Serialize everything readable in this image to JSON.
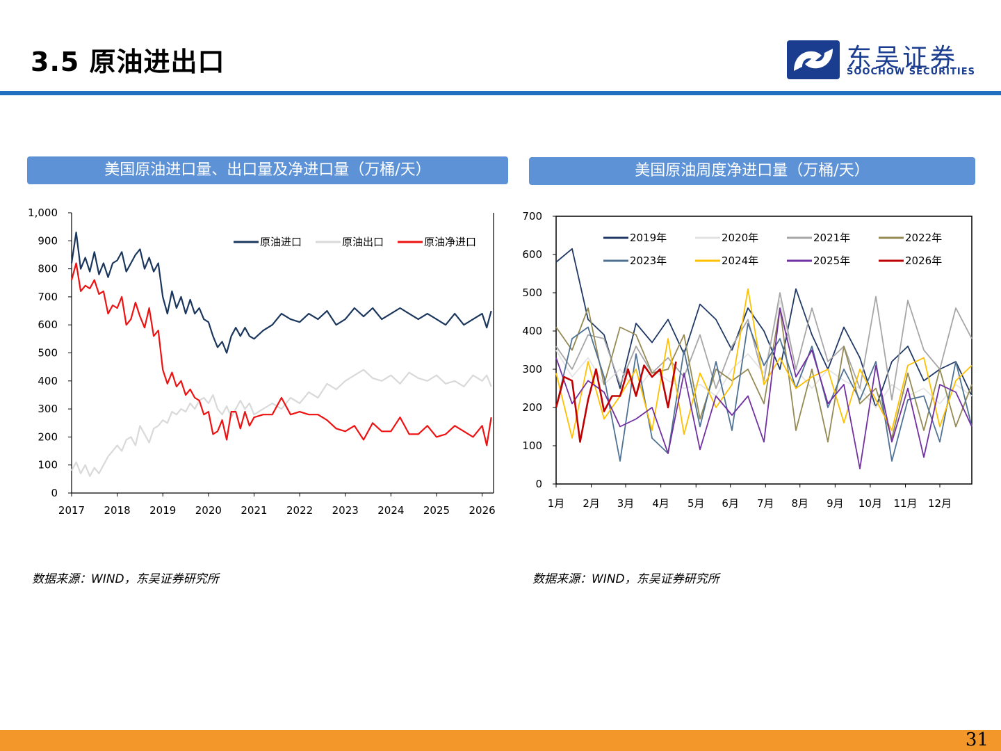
{
  "header": {
    "title": "3.5 原油进出口",
    "logo_name": "东吴证券",
    "logo_en": "SOOCHOW SECURITIES"
  },
  "colors": {
    "brand_blue": "#1f6fbf",
    "panel_header": "#5d93d6",
    "footer_orange": "#f4972b"
  },
  "left_panel": {
    "header": "美国原油进口量、出口量及净进口量（万桶/天）",
    "source": "数据来源：WIND，东吴证券研究所"
  },
  "right_panel": {
    "header": "美国原油周度净进口量（万桶/天）",
    "source": "数据来源：WIND，东吴证券研究所"
  },
  "footer": {
    "page_number": "31"
  },
  "chart_data": [
    {
      "type": "line",
      "x_unit": "year",
      "x_ticks": [
        "2017",
        "2018",
        "2019",
        "2020",
        "2021",
        "2022",
        "2023",
        "2024",
        "2025",
        "2026"
      ],
      "xlim": [
        2017,
        2026.25
      ],
      "y_ticks": [
        "0",
        "100",
        "200",
        "300",
        "400",
        "500",
        "600",
        "700",
        "800",
        "900",
        "1,000"
      ],
      "ylim": [
        0,
        1000
      ],
      "legend_position": "top-right",
      "grid": false,
      "series": [
        {
          "name": "原油进口",
          "color": "#1b365d",
          "x": [
            2017.0,
            2017.1,
            2017.2,
            2017.3,
            2017.4,
            2017.5,
            2017.6,
            2017.7,
            2017.8,
            2017.9,
            2018.0,
            2018.1,
            2018.2,
            2018.3,
            2018.4,
            2018.5,
            2018.6,
            2018.7,
            2018.8,
            2018.9,
            2019.0,
            2019.1,
            2019.2,
            2019.3,
            2019.4,
            2019.5,
            2019.6,
            2019.7,
            2019.8,
            2019.9,
            2020.0,
            2020.1,
            2020.2,
            2020.3,
            2020.4,
            2020.5,
            2020.6,
            2020.7,
            2020.8,
            2020.9,
            2021.0,
            2021.2,
            2021.4,
            2021.6,
            2021.8,
            2022.0,
            2022.2,
            2022.4,
            2022.6,
            2022.8,
            2023.0,
            2023.2,
            2023.4,
            2023.6,
            2023.8,
            2024.0,
            2024.2,
            2024.4,
            2024.6,
            2024.8,
            2025.0,
            2025.2,
            2025.4,
            2025.6,
            2025.8,
            2026.0,
            2026.1,
            2026.2
          ],
          "y": [
            820,
            930,
            800,
            840,
            790,
            860,
            780,
            820,
            770,
            820,
            830,
            860,
            790,
            820,
            850,
            870,
            800,
            840,
            790,
            820,
            700,
            640,
            720,
            660,
            700,
            640,
            690,
            640,
            660,
            620,
            610,
            560,
            520,
            540,
            500,
            560,
            590,
            560,
            590,
            560,
            550,
            580,
            600,
            640,
            620,
            610,
            640,
            620,
            650,
            600,
            620,
            660,
            630,
            660,
            620,
            640,
            660,
            640,
            620,
            640,
            620,
            600,
            640,
            600,
            620,
            640,
            590,
            650
          ]
        },
        {
          "name": "原油出口",
          "color": "#d9d9d9",
          "x": [
            2017.0,
            2017.1,
            2017.2,
            2017.3,
            2017.4,
            2017.5,
            2017.6,
            2017.7,
            2017.8,
            2017.9,
            2018.0,
            2018.1,
            2018.2,
            2018.3,
            2018.4,
            2018.5,
            2018.6,
            2018.7,
            2018.8,
            2018.9,
            2019.0,
            2019.1,
            2019.2,
            2019.3,
            2019.4,
            2019.5,
            2019.6,
            2019.7,
            2019.8,
            2019.9,
            2020.0,
            2020.1,
            2020.2,
            2020.3,
            2020.4,
            2020.5,
            2020.6,
            2020.7,
            2020.8,
            2020.9,
            2021.0,
            2021.2,
            2021.4,
            2021.6,
            2021.8,
            2022.0,
            2022.2,
            2022.4,
            2022.6,
            2022.8,
            2023.0,
            2023.2,
            2023.4,
            2023.6,
            2023.8,
            2024.0,
            2024.2,
            2024.4,
            2024.6,
            2024.8,
            2025.0,
            2025.2,
            2025.4,
            2025.6,
            2025.8,
            2026.0,
            2026.1,
            2026.2
          ],
          "y": [
            80,
            110,
            70,
            100,
            60,
            90,
            70,
            100,
            130,
            150,
            170,
            150,
            190,
            200,
            170,
            240,
            210,
            180,
            230,
            240,
            260,
            250,
            290,
            280,
            300,
            290,
            320,
            300,
            330,
            340,
            320,
            350,
            300,
            280,
            310,
            270,
            300,
            330,
            300,
            320,
            280,
            300,
            320,
            300,
            340,
            320,
            360,
            340,
            390,
            370,
            400,
            420,
            440,
            410,
            400,
            420,
            390,
            430,
            410,
            400,
            420,
            390,
            400,
            380,
            420,
            400,
            420,
            380
          ]
        },
        {
          "name": "原油净进口",
          "color": "#ee1111",
          "x": [
            2017.0,
            2017.1,
            2017.2,
            2017.3,
            2017.4,
            2017.5,
            2017.6,
            2017.7,
            2017.8,
            2017.9,
            2018.0,
            2018.1,
            2018.2,
            2018.3,
            2018.4,
            2018.5,
            2018.6,
            2018.7,
            2018.8,
            2018.9,
            2019.0,
            2019.1,
            2019.2,
            2019.3,
            2019.4,
            2019.5,
            2019.6,
            2019.7,
            2019.8,
            2019.9,
            2020.0,
            2020.1,
            2020.2,
            2020.3,
            2020.4,
            2020.5,
            2020.6,
            2020.7,
            2020.8,
            2020.9,
            2021.0,
            2021.2,
            2021.4,
            2021.6,
            2021.8,
            2022.0,
            2022.2,
            2022.4,
            2022.6,
            2022.8,
            2023.0,
            2023.2,
            2023.4,
            2023.6,
            2023.8,
            2024.0,
            2024.2,
            2024.4,
            2024.6,
            2024.8,
            2025.0,
            2025.2,
            2025.4,
            2025.6,
            2025.8,
            2026.0,
            2026.1,
            2026.2
          ],
          "y": [
            760,
            820,
            720,
            740,
            730,
            760,
            710,
            720,
            640,
            670,
            660,
            700,
            600,
            620,
            680,
            630,
            590,
            660,
            560,
            580,
            440,
            390,
            430,
            380,
            400,
            350,
            370,
            340,
            330,
            280,
            290,
            210,
            220,
            260,
            190,
            290,
            290,
            230,
            290,
            240,
            270,
            280,
            280,
            340,
            280,
            290,
            280,
            280,
            260,
            230,
            220,
            240,
            190,
            250,
            220,
            220,
            270,
            210,
            210,
            240,
            200,
            210,
            240,
            220,
            200,
            240,
            170,
            270
          ]
        }
      ]
    },
    {
      "type": "line",
      "x_ticks": [
        "1月",
        "2月",
        "3月",
        "4月",
        "5月",
        "6月",
        "7月",
        "8月",
        "9月",
        "10月",
        "11月",
        "12月"
      ],
      "x_unit": "week",
      "xlim": [
        1,
        53
      ],
      "y_ticks": [
        "0",
        "100",
        "200",
        "300",
        "400",
        "500",
        "600",
        "700"
      ],
      "ylim": [
        0,
        700
      ],
      "legend_position": "top",
      "grid": false,
      "series": [
        {
          "name": "2019年",
          "color": "#1f3864",
          "x": [
            1,
            3,
            5,
            7,
            9,
            11,
            13,
            15,
            17,
            19,
            21,
            23,
            25,
            27,
            29,
            31,
            33,
            35,
            37,
            39,
            41,
            43,
            45,
            47,
            49,
            51,
            53
          ],
          "y": [
            580,
            615,
            430,
            390,
            250,
            420,
            370,
            430,
            340,
            470,
            430,
            350,
            460,
            400,
            300,
            510,
            390,
            300,
            410,
            330,
            200,
            320,
            360,
            270,
            300,
            320,
            230
          ]
        },
        {
          "name": "2020年",
          "color": "#e3e3e3",
          "x": [
            1,
            3,
            5,
            7,
            9,
            11,
            13,
            15,
            17,
            19,
            21,
            23,
            25,
            27,
            29,
            31,
            33,
            35,
            37,
            39,
            41,
            43,
            45,
            47,
            49,
            51,
            53
          ],
          "y": [
            350,
            280,
            330,
            260,
            300,
            240,
            300,
            270,
            250,
            260,
            230,
            300,
            340,
            290,
            480,
            300,
            250,
            300,
            270,
            250,
            200,
            260,
            230,
            250,
            210,
            260,
            230
          ]
        },
        {
          "name": "2021年",
          "color": "#a6a6a6",
          "x": [
            1,
            3,
            5,
            7,
            9,
            11,
            13,
            15,
            17,
            19,
            21,
            23,
            25,
            27,
            29,
            31,
            33,
            35,
            37,
            39,
            41,
            43,
            45,
            47,
            49,
            51,
            53
          ],
          "y": [
            360,
            300,
            390,
            380,
            260,
            360,
            290,
            330,
            280,
            390,
            250,
            360,
            430,
            270,
            500,
            300,
            460,
            320,
            360,
            250,
            490,
            220,
            480,
            350,
            300,
            460,
            380
          ]
        },
        {
          "name": "2022年",
          "color": "#948a54",
          "x": [
            1,
            3,
            5,
            7,
            9,
            11,
            13,
            15,
            17,
            19,
            21,
            23,
            25,
            27,
            29,
            31,
            33,
            35,
            37,
            39,
            41,
            43,
            45,
            47,
            49,
            51,
            53
          ],
          "y": [
            410,
            350,
            460,
            260,
            410,
            390,
            290,
            300,
            390,
            170,
            300,
            270,
            300,
            210,
            460,
            140,
            300,
            110,
            360,
            210,
            250,
            120,
            290,
            140,
            300,
            150,
            260
          ]
        },
        {
          "name": "2023年",
          "color": "#4f7193",
          "x": [
            1,
            3,
            5,
            7,
            9,
            11,
            13,
            15,
            17,
            19,
            21,
            23,
            25,
            27,
            29,
            31,
            33,
            35,
            37,
            39,
            41,
            43,
            45,
            47,
            49,
            51,
            53
          ],
          "y": [
            200,
            380,
            410,
            280,
            60,
            340,
            120,
            80,
            350,
            150,
            320,
            140,
            420,
            310,
            380,
            250,
            360,
            200,
            300,
            220,
            320,
            60,
            220,
            230,
            110,
            320,
            150
          ]
        },
        {
          "name": "2024年",
          "color": "#ffc000",
          "x": [
            1,
            3,
            5,
            7,
            9,
            11,
            13,
            15,
            17,
            19,
            21,
            23,
            25,
            27,
            29,
            31,
            33,
            35,
            37,
            39,
            41,
            43,
            45,
            47,
            49,
            51,
            53
          ],
          "y": [
            290,
            120,
            320,
            170,
            230,
            300,
            140,
            380,
            130,
            290,
            200,
            260,
            510,
            260,
            330,
            250,
            280,
            300,
            160,
            300,
            220,
            140,
            310,
            330,
            150,
            270,
            310
          ]
        },
        {
          "name": "2025年",
          "color": "#7030a0",
          "x": [
            1,
            3,
            5,
            7,
            9,
            11,
            13,
            15,
            17,
            19,
            21,
            23,
            25,
            27,
            29,
            31,
            33,
            35,
            37,
            39,
            41,
            43,
            45,
            47,
            49,
            51,
            53
          ],
          "y": [
            330,
            210,
            270,
            240,
            150,
            170,
            200,
            80,
            290,
            90,
            230,
            180,
            230,
            110,
            460,
            280,
            350,
            210,
            260,
            40,
            310,
            110,
            250,
            70,
            260,
            240,
            150
          ]
        },
        {
          "name": "2026年",
          "color": "#c00000",
          "x": [
            1,
            2,
            3,
            4,
            5,
            6,
            7,
            8,
            9,
            10,
            11,
            12,
            13,
            14,
            15,
            16
          ],
          "y": [
            200,
            280,
            270,
            110,
            220,
            300,
            190,
            230,
            230,
            300,
            230,
            310,
            280,
            300,
            200,
            320
          ]
        }
      ]
    }
  ]
}
